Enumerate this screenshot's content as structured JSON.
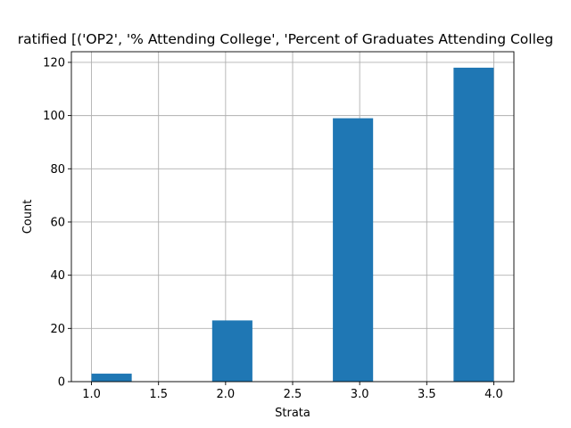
{
  "chart_data": {
    "type": "bar",
    "title": "ratified [('OP2', '% Attending College', 'Percent of Graduates Attending Colleg",
    "xlabel": "Strata",
    "ylabel": "Count",
    "xlim": [
      0.85,
      4.15
    ],
    "ylim": [
      0,
      124
    ],
    "xticks": [
      1.0,
      1.5,
      2.0,
      2.5,
      3.0,
      3.5,
      4.0
    ],
    "xtick_labels": [
      "1.0",
      "1.5",
      "2.0",
      "2.5",
      "3.0",
      "3.5",
      "4.0"
    ],
    "yticks": [
      0,
      20,
      40,
      60,
      80,
      100,
      120
    ],
    "ytick_labels": [
      "0",
      "20",
      "40",
      "60",
      "80",
      "100",
      "120"
    ],
    "grid": true,
    "bar_color": "#1f77b4",
    "bars": [
      {
        "x_start": 1.0,
        "x_end": 1.3,
        "value": 3
      },
      {
        "x_start": 1.9,
        "x_end": 2.2,
        "value": 23
      },
      {
        "x_start": 2.8,
        "x_end": 3.1,
        "value": 99
      },
      {
        "x_start": 3.7,
        "x_end": 4.0,
        "value": 118
      }
    ]
  }
}
